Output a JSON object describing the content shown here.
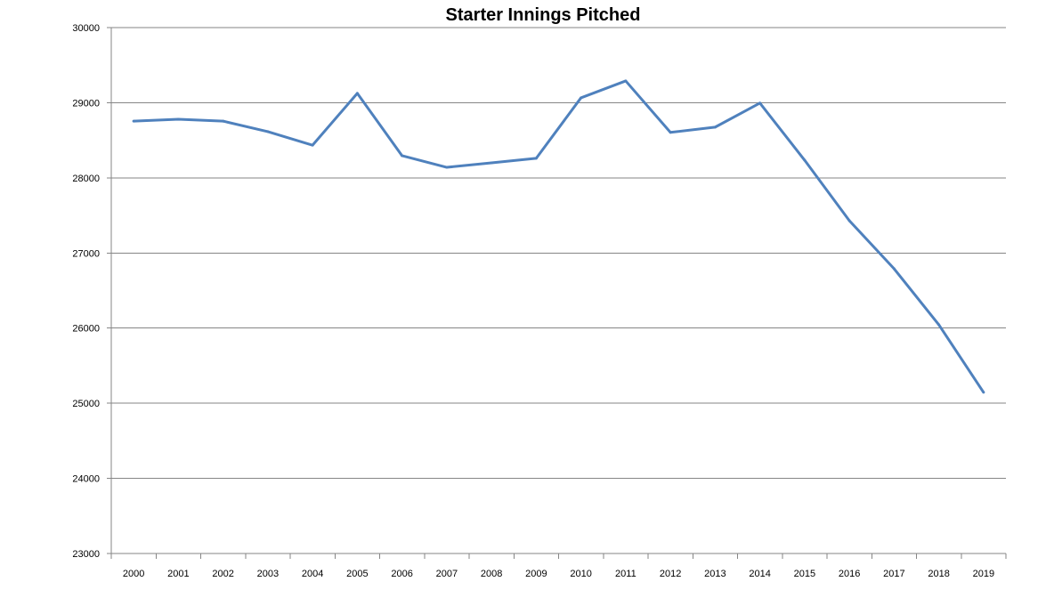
{
  "chart_data": {
    "type": "line",
    "title": "Starter Innings Pitched",
    "xlabel": "",
    "ylabel": "",
    "categories": [
      "2000",
      "2001",
      "2002",
      "2003",
      "2004",
      "2005",
      "2006",
      "2007",
      "2008",
      "2009",
      "2010",
      "2011",
      "2012",
      "2013",
      "2014",
      "2015",
      "2016",
      "2017",
      "2018",
      "2019"
    ],
    "series": [
      {
        "name": "Starter Innings Pitched",
        "values": [
          28755,
          28780,
          28755,
          28615,
          28435,
          29125,
          28295,
          28140,
          28200,
          28260,
          29065,
          29290,
          28605,
          28675,
          28995,
          28235,
          27430,
          26790,
          26045,
          25145
        ]
      }
    ],
    "ylim": [
      23000,
      30000
    ],
    "yticks": [
      23000,
      24000,
      25000,
      26000,
      27000,
      28000,
      29000,
      30000
    ],
    "grid": true,
    "legend": "none",
    "color": "#4f81bd"
  }
}
